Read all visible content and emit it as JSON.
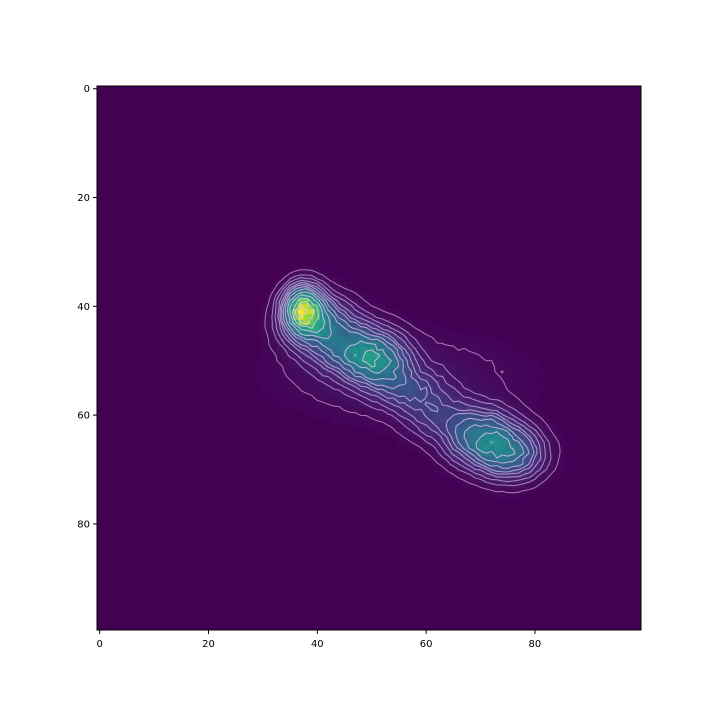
{
  "colors": {
    "background": "#440154",
    "figure": "#ffffff",
    "contour": "#f0c8f0",
    "colormap": [
      "#440154",
      "#472d7b",
      "#3b528b",
      "#2c728e",
      "#21918c",
      "#28ae80",
      "#5ec962",
      "#addc30",
      "#fde725"
    ]
  },
  "chart_data": {
    "type": "heatmap",
    "colormap": "viridis",
    "overlay": "contour",
    "grid": false,
    "legend": "none",
    "image_shape": [
      100,
      100
    ],
    "xlim": [
      -0.5,
      99.5
    ],
    "ylim": [
      99.5,
      -0.5
    ],
    "xticks": [
      0,
      20,
      40,
      60,
      80
    ],
    "yticks": [
      0,
      20,
      40,
      60,
      80
    ],
    "xtick_labels": [
      "0",
      "20",
      "40",
      "60",
      "80"
    ],
    "ytick_labels": [
      "0",
      "20",
      "40",
      "60",
      "80"
    ],
    "value_range": [
      0,
      1
    ],
    "blobs": [
      {
        "center": [
          37.5,
          40.5
        ],
        "sigma": [
          2.2,
          2.6
        ],
        "peak": 1.0
      },
      {
        "center": [
          40.5,
          43.5
        ],
        "sigma": [
          4.0,
          3.2
        ],
        "peak": 0.45
      },
      {
        "center": [
          47.5,
          48.0
        ],
        "sigma": [
          4.5,
          3.0
        ],
        "peak": 0.45
      },
      {
        "center": [
          51.5,
          51.0
        ],
        "sigma": [
          3.5,
          2.8
        ],
        "peak": 0.38
      },
      {
        "center": [
          57.0,
          55.5
        ],
        "sigma": [
          3.8,
          2.5
        ],
        "peak": 0.2
      },
      {
        "center": [
          62.0,
          60.0
        ],
        "sigma": [
          3.8,
          2.8
        ],
        "peak": 0.18
      },
      {
        "center": [
          70.0,
          64.0
        ],
        "sigma": [
          4.0,
          3.2
        ],
        "peak": 0.48
      },
      {
        "center": [
          75.5,
          67.0
        ],
        "sigma": [
          3.8,
          3.0
        ],
        "peak": 0.42
      },
      {
        "center": [
          55.0,
          53.0
        ],
        "sigma": [
          14.0,
          5.0
        ],
        "peak": 0.06
      }
    ],
    "contour_levels": [
      0.02,
      0.05,
      0.08,
      0.12,
      0.16,
      0.2,
      0.26,
      0.33,
      0.42,
      0.52,
      0.65,
      0.8,
      0.92
    ]
  }
}
